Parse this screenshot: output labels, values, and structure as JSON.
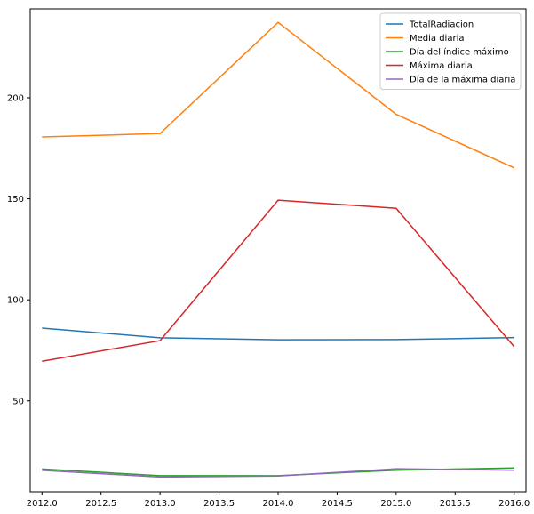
{
  "chart_data": {
    "type": "line",
    "x": [
      2012.0,
      2013.0,
      2014.0,
      2015.0,
      2016.0
    ],
    "series": [
      {
        "name": "TotalRadiacion",
        "color": "#1f77b4",
        "values": [
          86.0,
          81.2,
          80.2,
          80.3,
          81.3
        ]
      },
      {
        "name": "Media diaria",
        "color": "#ff7f0e",
        "values": [
          180.6,
          182.3,
          237.3,
          191.8,
          165.3
        ]
      },
      {
        "name": "Día del índice máximo",
        "color": "#2ca02c",
        "values": [
          16.3,
          13.0,
          13.0,
          15.7,
          16.8
        ]
      },
      {
        "name": "Máxima diaria",
        "color": "#d62728",
        "values": [
          69.6,
          79.8,
          149.3,
          145.3,
          76.8
        ]
      },
      {
        "name": "Día de la máxima diaria",
        "color": "#9467bd",
        "values": [
          15.6,
          12.3,
          12.8,
          16.4,
          15.7
        ]
      }
    ],
    "xticks": [
      "2012.0",
      "2012.5",
      "2013.0",
      "2013.5",
      "2014.0",
      "2014.5",
      "2015.0",
      "2015.5",
      "2016.0"
    ],
    "xtick_values": [
      2012.0,
      2012.5,
      2013.0,
      2013.5,
      2014.0,
      2014.5,
      2015.0,
      2015.5,
      2016.0
    ],
    "yticks": [
      "50",
      "100",
      "150",
      "200"
    ],
    "ytick_values": [
      50,
      100,
      150,
      200
    ],
    "xlim": [
      2011.9,
      2016.1
    ],
    "ylim": [
      5,
      244
    ],
    "legend_position": "top-right",
    "grid": false
  }
}
